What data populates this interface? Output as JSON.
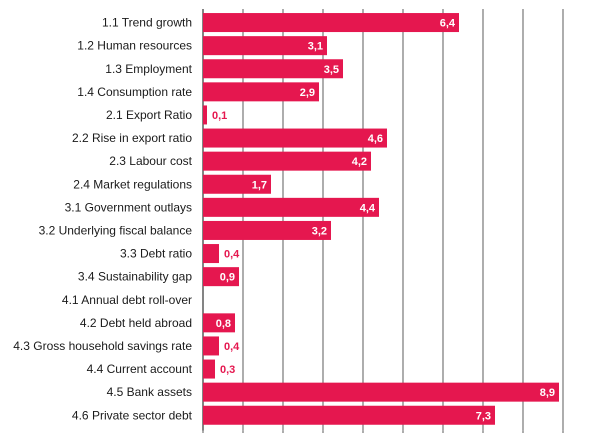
{
  "chart_data": {
    "type": "bar",
    "orientation": "horizontal",
    "title": "",
    "xlabel": "",
    "ylabel": "",
    "xlim": [
      0,
      9
    ],
    "grid": true,
    "bar_color": "#e5174f",
    "categories": [
      "1.1 Trend growth",
      "1.2 Human resources",
      "1.3 Employment",
      "1.4 Consumption rate",
      "2.1 Export Ratio",
      "2.2 Rise in export ratio",
      "2.3 Labour cost",
      "2.4 Market regulations",
      "3.1 Government outlays",
      "3.2 Underlying fiscal balance",
      "3.3 Debt ratio",
      "3.4 Sustainability gap",
      "4.1 Annual debt roll-over",
      "4.2 Debt held abroad",
      "4.3 Gross household savings rate",
      "4.4 Current account",
      "4.5 Bank assets",
      "4.6 Private sector debt"
    ],
    "values": [
      6.4,
      3.1,
      3.5,
      2.9,
      0.1,
      4.6,
      4.2,
      1.7,
      4.4,
      3.2,
      0.4,
      0.9,
      null,
      0.8,
      0.4,
      0.3,
      8.9,
      7.3
    ],
    "value_labels": [
      "6,4",
      "3,1",
      "3,5",
      "2,9",
      "0,1",
      "4,6",
      "4,2",
      "1,7",
      "4,4",
      "3,2",
      "0,4",
      "0,9",
      "",
      "0,8",
      "0,4",
      "0,3",
      "8,9",
      "7,3"
    ]
  }
}
